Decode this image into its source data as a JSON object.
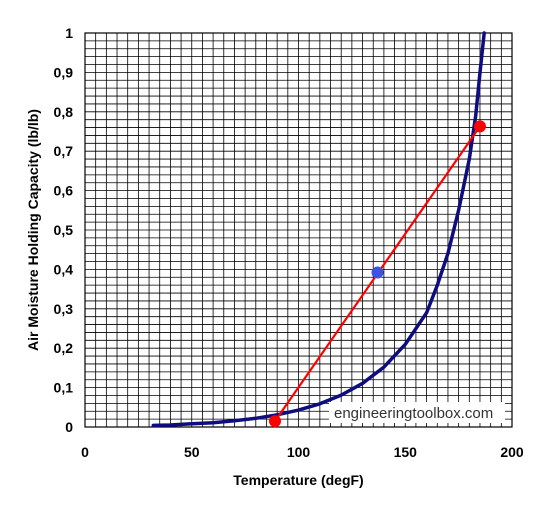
{
  "chart_data": {
    "type": "line",
    "xlabel": "Temperature (degF)",
    "ylabel": "Air Moisture Holding Capacity (lb/lb)",
    "xlim": [
      0,
      200
    ],
    "ylim": [
      0,
      1
    ],
    "x_ticks": [
      "0",
      "50",
      "100",
      "150",
      "200"
    ],
    "y_ticks": [
      "0",
      "0,1",
      "0,2",
      "0,3",
      "0,4",
      "0,5",
      "0,6",
      "0,7",
      "0,8",
      "0,9",
      "1"
    ],
    "x_gridline_step": 5,
    "y_gridline_step": 0.02,
    "grid": true,
    "series": [
      {
        "kind": "curve",
        "color": "#0d0d80",
        "points": [
          [
            32,
            0.004
          ],
          [
            40,
            0.005
          ],
          [
            50,
            0.008
          ],
          [
            60,
            0.011
          ],
          [
            70,
            0.016
          ],
          [
            80,
            0.022
          ],
          [
            90,
            0.031
          ],
          [
            100,
            0.043
          ],
          [
            110,
            0.059
          ],
          [
            120,
            0.081
          ],
          [
            130,
            0.111
          ],
          [
            140,
            0.152
          ],
          [
            150,
            0.21
          ],
          [
            160,
            0.29
          ],
          [
            165,
            0.36
          ],
          [
            170,
            0.44
          ],
          [
            175,
            0.55
          ],
          [
            180,
            0.68
          ],
          [
            183,
            0.79
          ],
          [
            185,
            0.9
          ],
          [
            187,
            1.0
          ]
        ]
      },
      {
        "kind": "line",
        "color": "#ff0000",
        "points": [
          [
            89,
            0.015
          ],
          [
            185,
            0.763
          ]
        ]
      },
      {
        "kind": "markers",
        "color": "#ff0000",
        "points": [
          [
            89,
            0.015
          ],
          [
            185,
            0.763
          ]
        ]
      },
      {
        "kind": "markers",
        "color": "#3d52e0",
        "points": [
          [
            137,
            0.392
          ]
        ]
      }
    ],
    "watermark": "engineeringtoolbox.com"
  }
}
